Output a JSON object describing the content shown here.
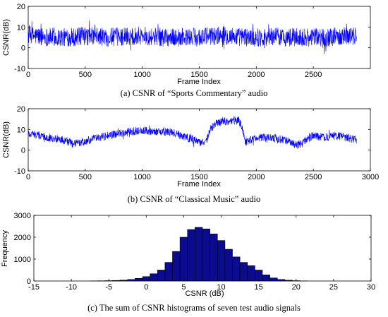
{
  "chart_data": [
    {
      "type": "line",
      "caption": "(a) CSNR of “Sports Commentary” audio",
      "xlabel": "Frame Index",
      "ylabel": "CSNR(dB)",
      "xlim": [
        0,
        3000
      ],
      "ylim": [
        -10,
        20
      ],
      "xticks": [
        0,
        500,
        1000,
        1500,
        2000,
        2500
      ],
      "yticks": [
        -10,
        0,
        10,
        20
      ],
      "grid": false,
      "color": "#0000ff",
      "n_frames": 2880,
      "series": [
        {
          "x": [
            0,
            120,
            240,
            360,
            480,
            600,
            720,
            840,
            960,
            1080,
            1200,
            1320,
            1440,
            1560,
            1680,
            1800,
            1920,
            2040,
            2160,
            2280,
            2400,
            2520,
            2640,
            2760,
            2880
          ],
          "values": [
            6,
            5.5,
            5,
            5,
            5.5,
            5.5,
            5,
            5.5,
            6,
            5.5,
            5,
            5,
            5,
            5.5,
            6,
            5.5,
            5,
            5,
            5.5,
            5,
            5,
            5,
            5,
            6,
            6
          ]
        }
      ]
    },
    {
      "type": "line",
      "caption": "(b) CSNR of “Classical Music” audio",
      "xlabel": "Frame Index",
      "ylabel": "CSNR(dB)",
      "xlim": [
        0,
        3000
      ],
      "ylim": [
        -10,
        20
      ],
      "xticks": [
        0,
        500,
        1000,
        1500,
        2000,
        2500,
        3000
      ],
      "yticks": [
        -10,
        0,
        10,
        20
      ],
      "grid": false,
      "color": "#0000ff",
      "n_frames": 2880,
      "series": [
        {
          "x": [
            0,
            100,
            200,
            300,
            400,
            500,
            600,
            700,
            800,
            900,
            1000,
            1100,
            1200,
            1300,
            1400,
            1500,
            1550,
            1600,
            1650,
            1700,
            1750,
            1800,
            1850,
            1880,
            1900,
            1950,
            2000,
            2100,
            2200,
            2300,
            2350,
            2400,
            2450,
            2500,
            2600,
            2700,
            2800,
            2880
          ],
          "values": [
            8,
            7,
            6,
            5,
            3,
            4,
            6,
            7,
            8,
            9,
            9.5,
            9,
            9,
            8,
            6,
            4,
            3,
            10,
            13,
            14,
            14,
            14.5,
            14,
            10,
            4,
            5,
            6,
            6,
            5.5,
            4,
            2.5,
            3,
            6,
            7,
            6,
            7,
            6,
            5
          ]
        }
      ]
    },
    {
      "type": "bar",
      "caption": "(c) The sum of CSNR histograms of seven test audio signals",
      "xlabel": "CSNR (dB)",
      "ylabel": "Frequency",
      "xlim": [
        -15,
        30
      ],
      "ylim": [
        0,
        3000
      ],
      "xticks": [
        -15,
        -10,
        -5,
        0,
        5,
        10,
        15,
        20,
        25,
        30
      ],
      "yticks": [
        0,
        1000,
        2000,
        3000
      ],
      "grid": false,
      "color": "#0b0b8f",
      "bin_width": 1,
      "x": [
        -7,
        -6,
        -5,
        -4,
        -3,
        -2,
        -1,
        0,
        1,
        2,
        3,
        4,
        5,
        6,
        7,
        8,
        9,
        10,
        11,
        12,
        13,
        14,
        15,
        16,
        17,
        18,
        19,
        20,
        21
      ],
      "values": [
        5,
        10,
        15,
        25,
        40,
        70,
        120,
        200,
        330,
        500,
        850,
        1350,
        2000,
        2350,
        2450,
        2380,
        2150,
        1850,
        1450,
        1100,
        850,
        700,
        500,
        280,
        140,
        70,
        35,
        15,
        5
      ]
    }
  ]
}
